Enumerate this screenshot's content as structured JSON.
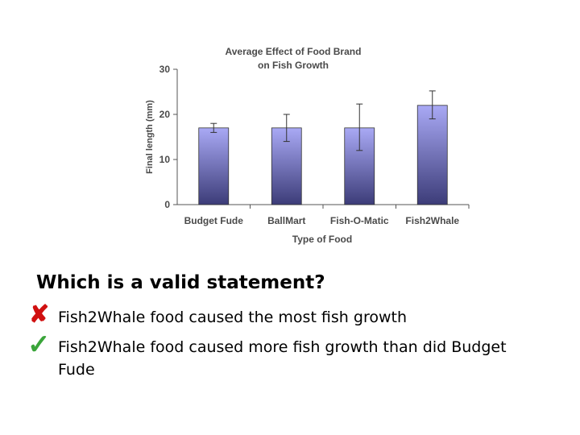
{
  "chart_data": {
    "type": "bar",
    "title": [
      "Average Effect of Food Brand",
      "on Fish Growth"
    ],
    "xlabel": "Type of Food",
    "ylabel": "Final length (mm)",
    "categories": [
      "Budget Fude",
      "BallMart",
      "Fish-O-Matic",
      "Fish2Whale"
    ],
    "values": [
      17,
      17,
      17,
      22
    ],
    "error": [
      [
        16,
        18
      ],
      [
        14,
        20
      ],
      [
        12,
        22.3
      ],
      [
        19,
        25.2
      ]
    ],
    "ylim": [
      0,
      30
    ],
    "yticks": [
      0,
      10,
      20,
      30
    ],
    "bar_color_top": "#a9a9f5",
    "bar_color_bottom": "#3c3c78",
    "grid": false
  },
  "question": "Which is a valid statement?",
  "options": [
    {
      "text": "Fish2Whale food caused the most fish growth",
      "mark": "cross-icon",
      "color": "#d01010"
    },
    {
      "text": "Fish2Whale food caused more fish growth than did Budget Fude",
      "mark": "check-icon",
      "color": "#3aa53a"
    }
  ]
}
